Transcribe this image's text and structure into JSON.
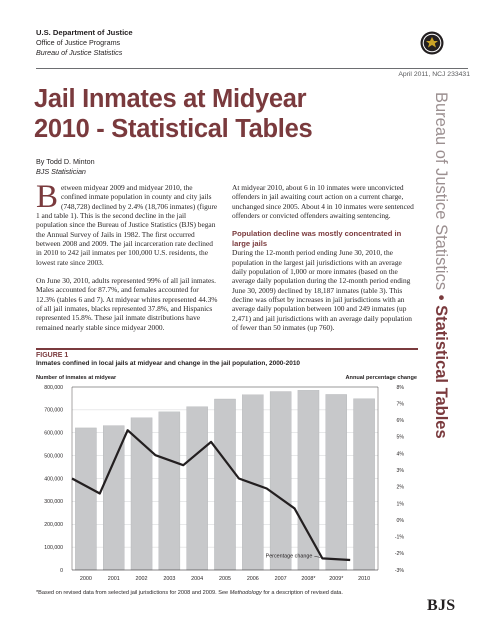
{
  "agency": {
    "department": "U.S. Department of Justice",
    "office": "Office of Justice Programs",
    "bureau": "Bureau of Justice Statistics"
  },
  "report": {
    "date_number": "April 2011, NCJ 233431",
    "title_line1": "Jail Inmates at Midyear",
    "title_line2": "2010 - Statistical Tables",
    "author": "By Todd D. Minton",
    "author_role": "BJS Statistician"
  },
  "side_band": {
    "series": "Bureau of Justice Statistics",
    "separator": "•",
    "type": "Statistical Tables"
  },
  "body": {
    "col1_dropcap": "B",
    "col1_p1": "etween midyear 2009 and midyear 2010, the confined inmate population in county and city jails (748,728) declined by 2.4% (18,706 inmates) (figure 1 and table 1). This is the second decline in the jail population since the Bureau of Justice Statistics (BJS) began the Annual Survey of Jails in 1982. The first occurred between 2008 and 2009. The jail incarceration rate declined in 2010 to 242 jail inmates per 100,000 U.S. residents, the lowest rate since 2003.",
    "col1_p2": "On June 30, 2010, adults represented 99% of all jail inmates. Males accounted for 87.7%, and females accounted for 12.3% (tables 6 and 7). At midyear whites represented 44.3% of all jail inmates, blacks represented 37.8%, and Hispanics represented 15.8%. These jail inmate distributions have remained nearly stable since midyear 2000.",
    "col2_p1": "At midyear 2010, about 6 in 10 inmates were unconvicted offenders in jail awaiting court action on a current charge, unchanged since 2005. About 4 in 10 inmates were sentenced offenders or convicted offenders awaiting sentencing.",
    "col2_subhead": "Population decline was mostly concentrated in large jails",
    "col2_p2": "During the 12-month period ending June 30, 2010, the population in the largest jail jurisdictions with an average daily population of 1,000 or more inmates (based on the average daily population during the 12-month period ending June 30, 2009) declined by 18,187 inmates (table 3). This decline was offset by increases in jail jurisdictions with an average daily population between 100 and 249 inmates (up 2,471) and jail jurisdictions with an average daily population of fewer than 50 inmates (up 760)."
  },
  "figure": {
    "label": "FIGURE 1",
    "title": "Inmates confined in local jails at midyear and change in the jail population, 2000-2010",
    "footnote_pre": "*Based on revised data from selected jail jurisdictions for 2008 and 2009. See ",
    "footnote_it": "Methodology",
    "footnote_post": " for a description of revised data."
  },
  "chart_data": {
    "type": "bar",
    "categories": [
      "2000",
      "2001",
      "2002",
      "2003",
      "2004",
      "2005",
      "2006",
      "2007",
      "2008*",
      "2009*",
      "2010"
    ],
    "series": [
      {
        "name": "Number of inmates at midyear",
        "type": "bar",
        "axis": "left",
        "values": [
          621149,
          631240,
          665475,
          691301,
          713990,
          747529,
          766010,
          780174,
          785533,
          767434,
          748728
        ]
      },
      {
        "name": "Percentage change",
        "type": "line",
        "axis": "right",
        "values": [
          2.5,
          1.6,
          5.4,
          3.9,
          3.3,
          4.7,
          2.5,
          1.9,
          0.7,
          -2.3,
          -2.4
        ]
      }
    ],
    "ylabel_left": "Number of inmates at midyear",
    "ylabel_right": "Annual percentage change",
    "ylim_left": [
      0,
      800000
    ],
    "yticks_left": [
      "0",
      "100,000",
      "200,000",
      "300,000",
      "400,000",
      "500,000",
      "600,000",
      "700,000",
      "800,000"
    ],
    "ylim_right": [
      -3,
      8
    ],
    "yticks_right": [
      "-3%",
      "-2%",
      "-1%",
      "0%",
      "1%",
      "2%",
      "3%",
      "4%",
      "5%",
      "6%",
      "7%",
      "8%"
    ],
    "annotation": "Percentage change",
    "grid": true,
    "colors": {
      "bar": "#c7c8ca",
      "line": "#231f20"
    }
  },
  "footer_logo": "BJS"
}
